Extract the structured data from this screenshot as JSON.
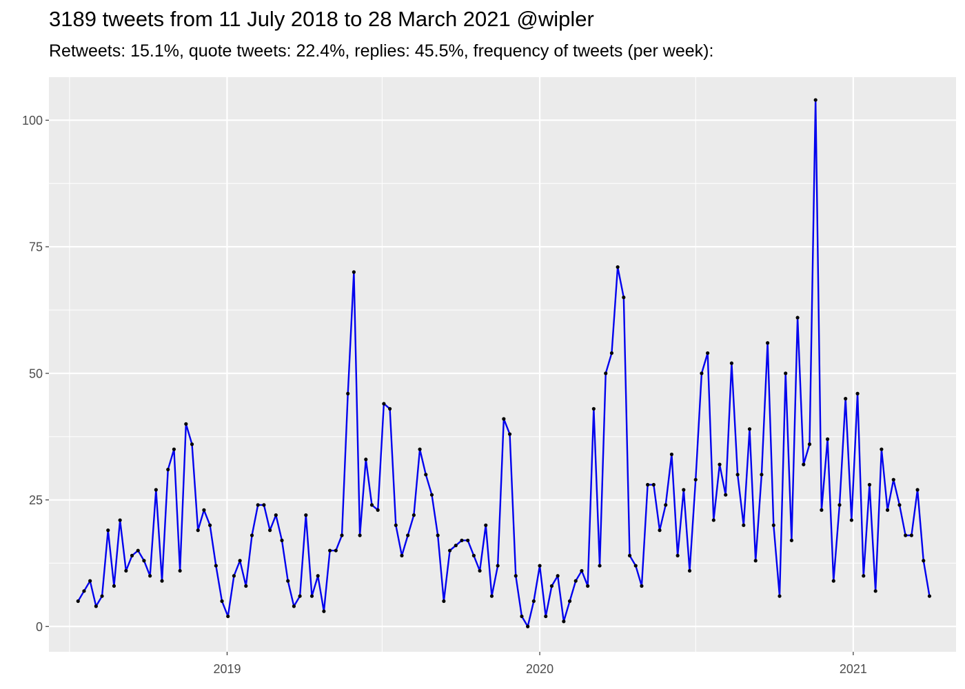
{
  "chart_data": {
    "type": "line",
    "title": "3189 tweets from 11 July 2018 to 28 March 2021 @wipler",
    "subtitle": "Retweets: 15.1%, quote tweets: 22.4%, replies: 45.5%, frequency of tweets (per week):",
    "xlabel": "",
    "ylabel": "",
    "x_start": "2018-07-11",
    "x_step_days": 7,
    "xlim": [
      "2018-06-07",
      "2021-05-01"
    ],
    "ylim": [
      -5,
      108.5
    ],
    "x_ticks": [
      {
        "date": "2019-01-01",
        "label": "2019"
      },
      {
        "date": "2020-01-01",
        "label": "2020"
      },
      {
        "date": "2021-01-01",
        "label": "2021"
      }
    ],
    "x_minor_ticks": [
      "2018-07-01",
      "2019-07-01",
      "2020-07-01"
    ],
    "y_ticks": [
      0,
      25,
      50,
      75,
      100
    ],
    "y_minor_ticks": [
      12.5,
      37.5,
      62.5,
      87.5
    ],
    "grid": true,
    "series_color": "#0000ee",
    "point_color": "#000000",
    "panel_color": "#ebebeb",
    "grid_color": "#ffffff",
    "values": [
      5,
      7,
      9,
      4,
      6,
      19,
      8,
      21,
      11,
      14,
      15,
      13,
      10,
      27,
      9,
      31,
      35,
      11,
      40,
      36,
      19,
      23,
      20,
      12,
      5,
      2,
      10,
      13,
      8,
      18,
      24,
      24,
      19,
      22,
      17,
      9,
      4,
      6,
      22,
      6,
      10,
      3,
      15,
      15,
      18,
      46,
      70,
      18,
      33,
      24,
      23,
      44,
      43,
      20,
      14,
      18,
      22,
      35,
      30,
      26,
      18,
      5,
      15,
      16,
      17,
      17,
      14,
      11,
      20,
      6,
      12,
      41,
      38,
      10,
      2,
      0,
      5,
      12,
      2,
      8,
      10,
      1,
      5,
      9,
      11,
      8,
      43,
      12,
      50,
      54,
      71,
      65,
      14,
      12,
      8,
      28,
      28,
      19,
      24,
      34,
      14,
      27,
      11,
      29,
      50,
      54,
      21,
      32,
      26,
      52,
      30,
      20,
      39,
      13,
      30,
      56,
      20,
      6,
      50,
      17,
      61,
      32,
      36,
      104,
      23,
      37,
      9,
      24,
      45,
      21,
      46,
      10,
      28,
      7,
      35,
      23,
      29,
      24,
      18,
      18,
      27,
      13,
      6
    ]
  }
}
